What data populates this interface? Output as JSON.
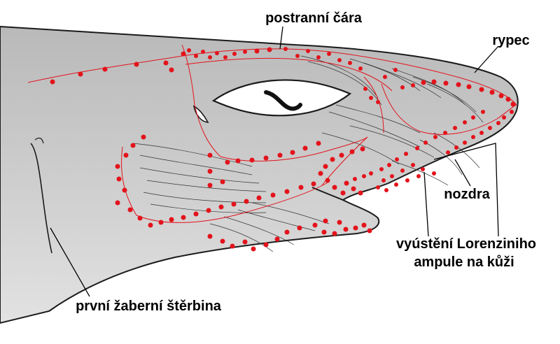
{
  "labels": {
    "lateral_line": "postranní čára",
    "snout": "rypec",
    "nostril": "nozdra",
    "lorenzini_line1": "vyústění Lorenziniho",
    "lorenzini_line2": "ampule na kůži",
    "gill_slit": "první žaberní štěrbina"
  },
  "colors": {
    "skin": "#c9c9c9",
    "eye_white": "#ffffff",
    "pore_red": "#e3131b",
    "outline": "#1a1a1a"
  }
}
